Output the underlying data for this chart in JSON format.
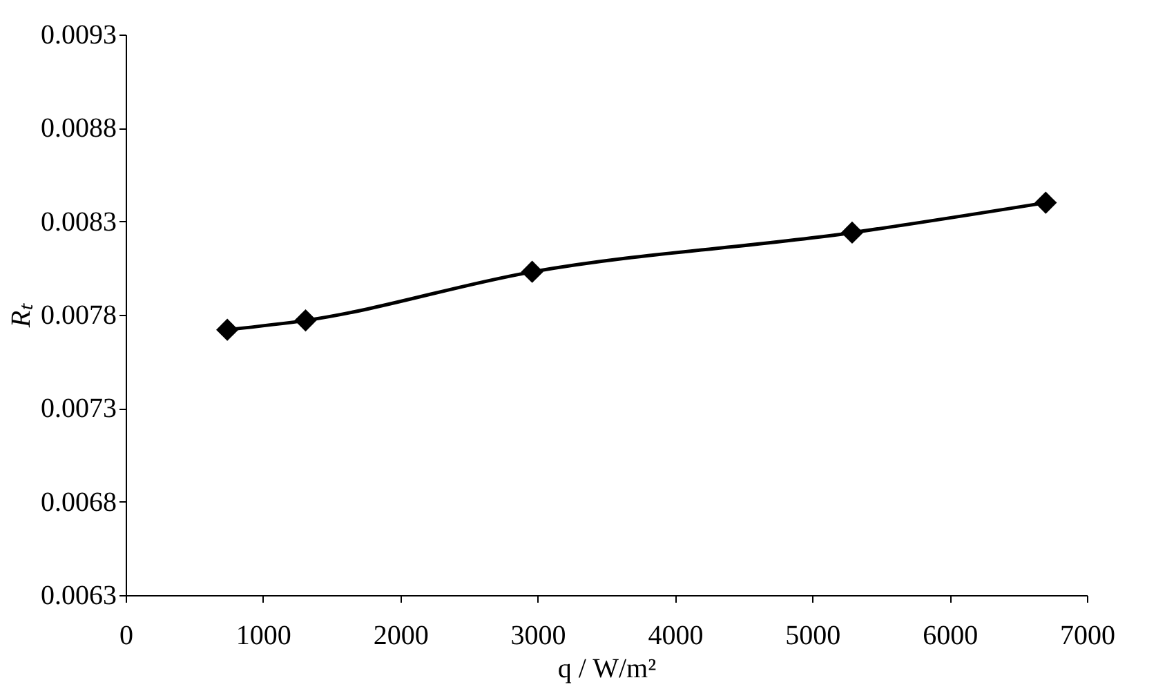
{
  "chart_data": {
    "type": "line",
    "xlabel": "q / W/m²",
    "ylabel": "Rₜ",
    "x": [
      740,
      1310,
      2960,
      5290,
      6700
    ],
    "series": [
      {
        "color": "#000000",
        "values": [
          0.00772,
          0.00777,
          0.00803,
          0.00824,
          0.0084
        ]
      }
    ],
    "xlim": [
      0,
      7000
    ],
    "xticks": [
      0,
      1000,
      2000,
      3000,
      4000,
      5000,
      6000,
      7000
    ],
    "ylim": [
      0.0063,
      0.0093
    ],
    "yticks": [
      0.0063,
      0.0068,
      0.0073,
      0.0078,
      0.0083,
      0.0088,
      0.0093
    ],
    "marker": "diamond",
    "line_style": "solid",
    "grid": false,
    "legend": false
  }
}
